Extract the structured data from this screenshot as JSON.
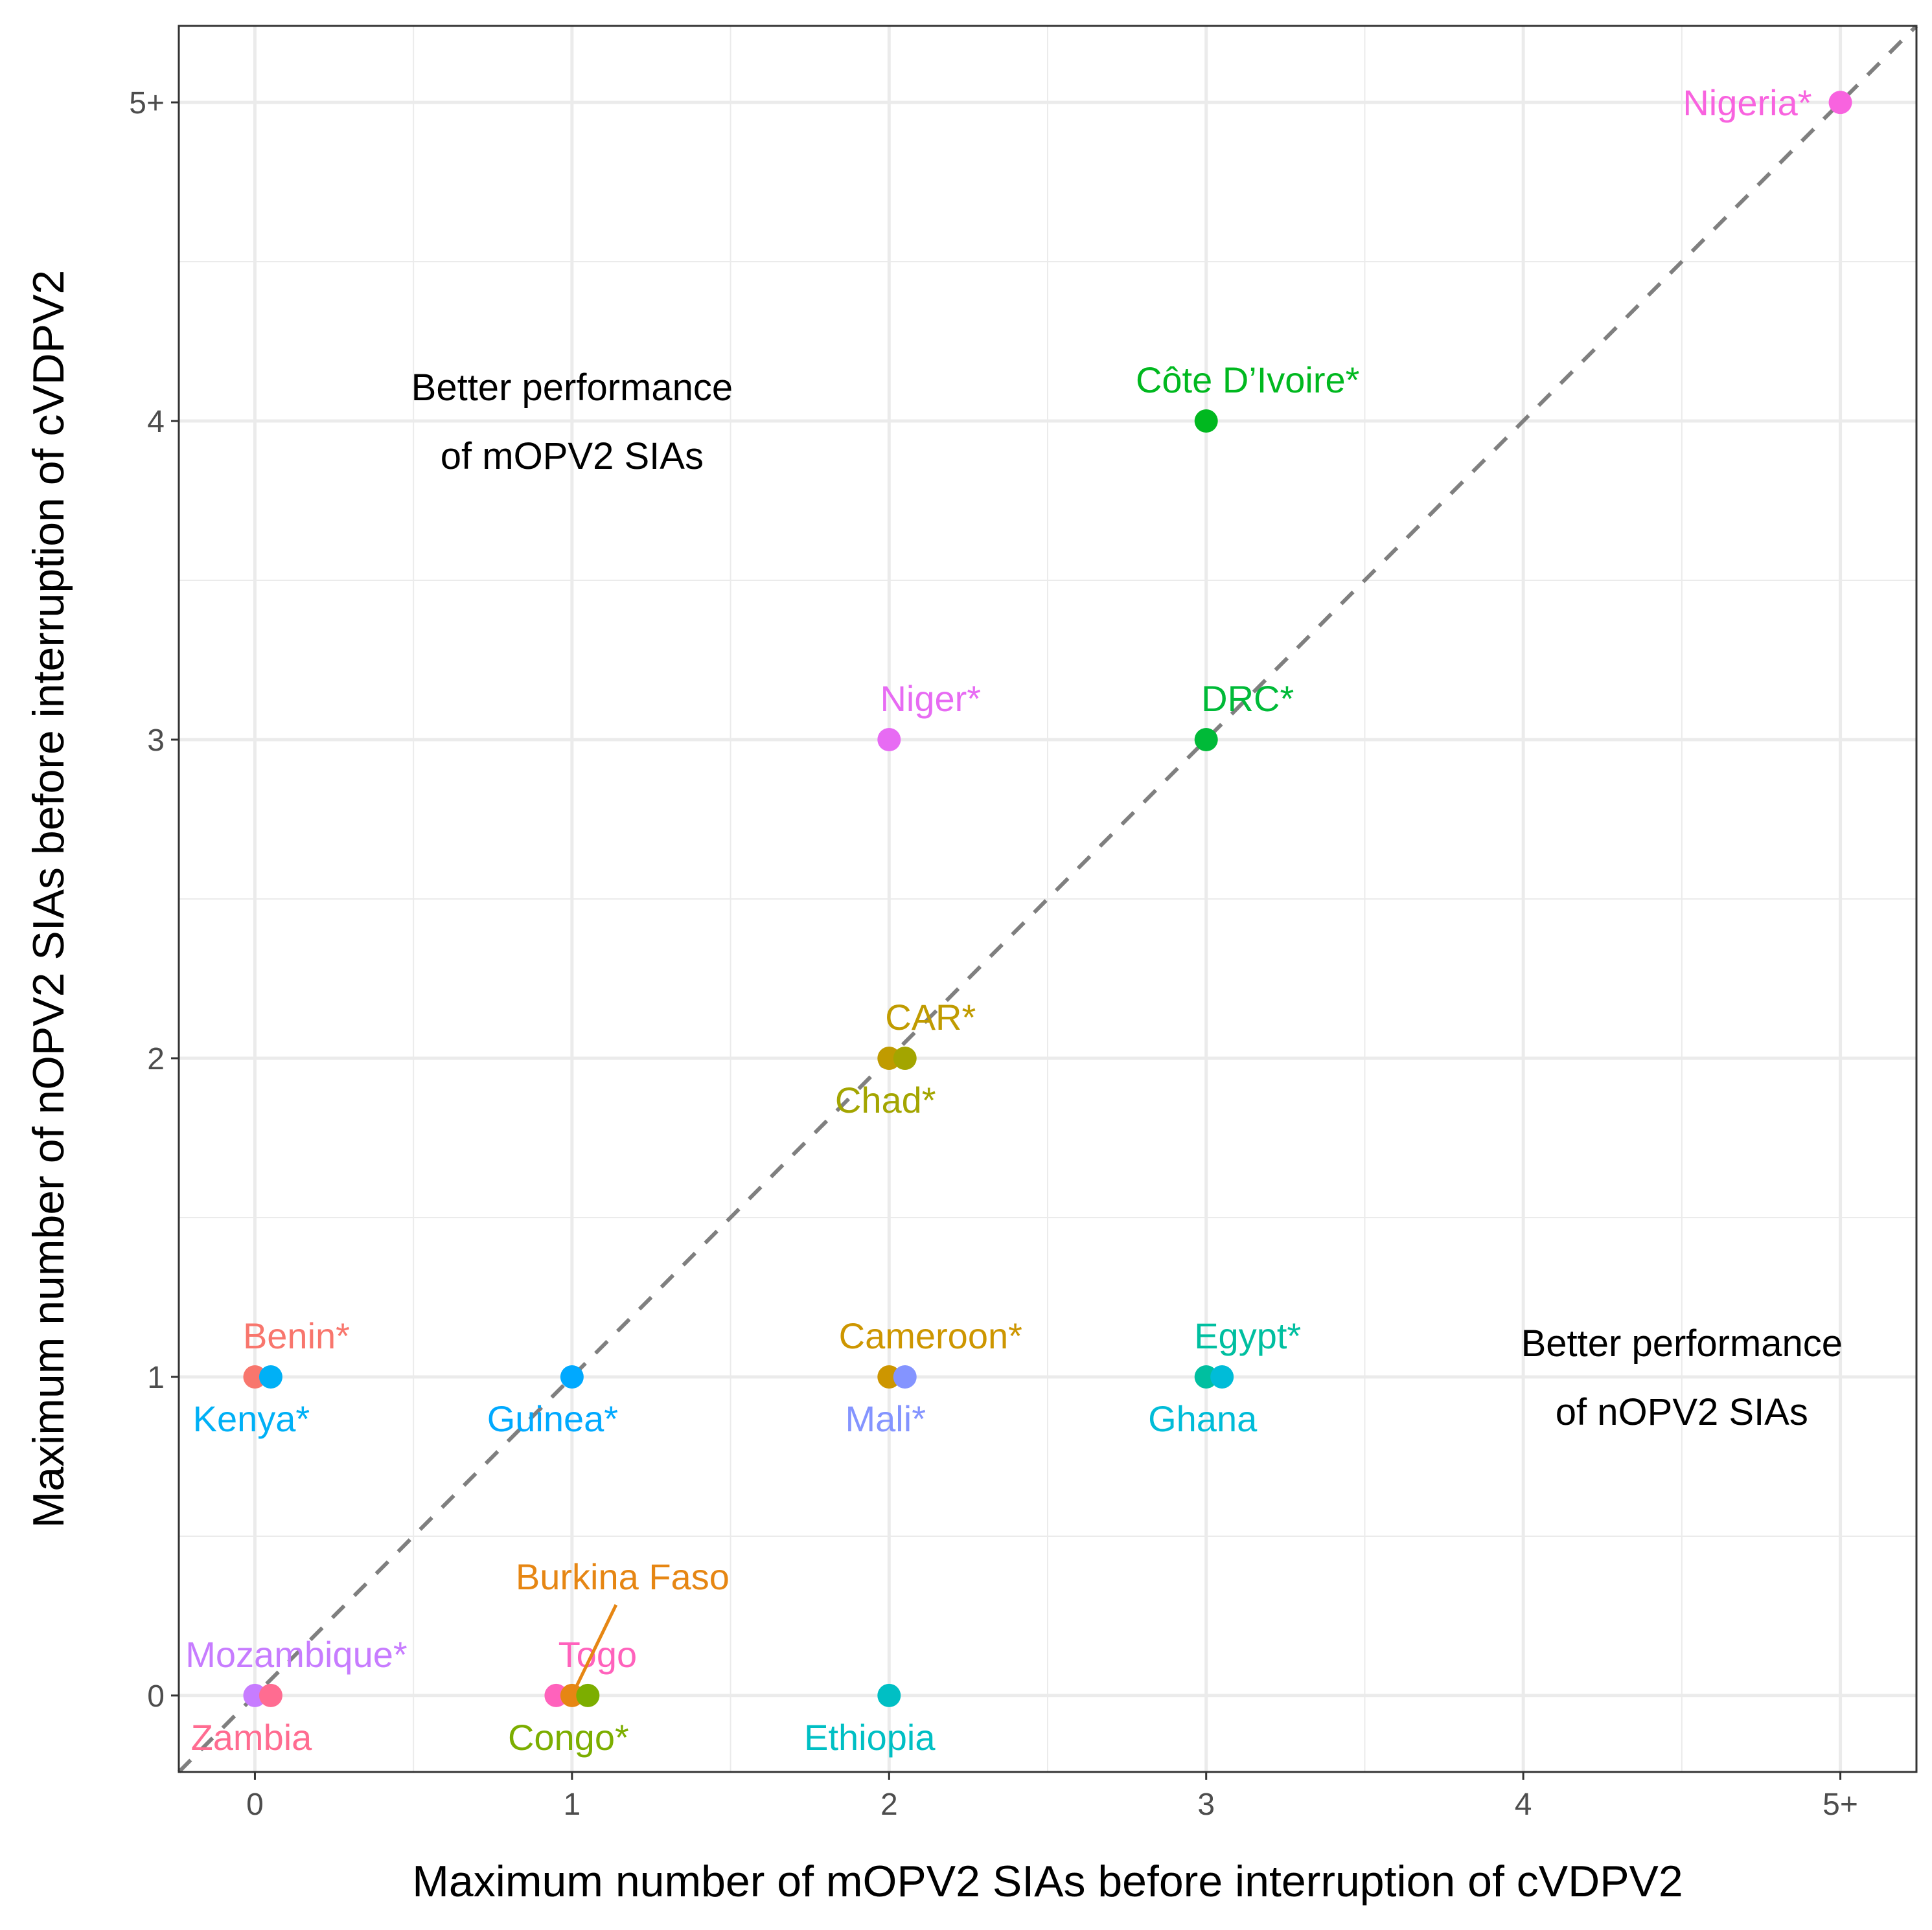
{
  "chart_data": {
    "type": "scatter",
    "title": "",
    "xlabel": "Maximum number of mOPV2 SIAs before interruption of cVDPV2",
    "ylabel": "Maximum number of nOPV2 SIAs before interruption of cVDPV2",
    "xlim": [
      -0.24,
      5.24
    ],
    "ylim": [
      -0.24,
      5.24
    ],
    "x_ticks": [
      0,
      1,
      2,
      3,
      4,
      5
    ],
    "x_tick_labels": [
      "0",
      "1",
      "2",
      "3",
      "4",
      "5+"
    ],
    "y_ticks": [
      0,
      1,
      2,
      3,
      4,
      5
    ],
    "y_tick_labels": [
      "0",
      "1",
      "2",
      "3",
      "4",
      "5+"
    ],
    "grid": true,
    "reference_line": {
      "style": "dashed",
      "slope": 1,
      "intercept": 0,
      "color": "#7f7f7f"
    },
    "points": [
      {
        "label": "Benin*",
        "x": 0,
        "y": 1,
        "color": "#F8766D",
        "label_pos": "above"
      },
      {
        "label": "Kenya*",
        "x": 0.05,
        "y": 1,
        "color": "#00B0F6",
        "label_pos": "below"
      },
      {
        "label": "Guinea*",
        "x": 1,
        "y": 1,
        "color": "#00A9FF",
        "label_pos": "below"
      },
      {
        "label": "Cameroon*",
        "x": 2,
        "y": 1,
        "color": "#CD9600",
        "label_pos": "above"
      },
      {
        "label": "Mali*",
        "x": 2.05,
        "y": 1,
        "color": "#8494FF",
        "label_pos": "below"
      },
      {
        "label": "Egypt*",
        "x": 3,
        "y": 1,
        "color": "#00BFA0",
        "label_pos": "above"
      },
      {
        "label": "Ghana",
        "x": 3.05,
        "y": 1,
        "color": "#00BCD8",
        "label_pos": "below"
      },
      {
        "label": "CAR*",
        "x": 2,
        "y": 2,
        "color": "#C09B00",
        "label_pos": "above"
      },
      {
        "label": "Chad*",
        "x": 2.05,
        "y": 2,
        "color": "#A3A500",
        "label_pos": "below"
      },
      {
        "label": "Niger*",
        "x": 2,
        "y": 3,
        "color": "#E76BF3",
        "label_pos": "above"
      },
      {
        "label": "DRC*",
        "x": 3,
        "y": 3,
        "color": "#00BA38",
        "label_pos": "above"
      },
      {
        "label": "Côte D’Ivoire*",
        "x": 3,
        "y": 4,
        "color": "#00B81F",
        "label_pos": "above"
      },
      {
        "label": "Nigeria*",
        "x": 5,
        "y": 5,
        "color": "#F863DF",
        "label_pos": "left"
      },
      {
        "label": "Mozambique*",
        "x": 0,
        "y": 0,
        "color": "#C77CFF",
        "label_pos": "above"
      },
      {
        "label": "Zambia",
        "x": 0.05,
        "y": 0,
        "color": "#FF6C91",
        "label_pos": "below"
      },
      {
        "label": "Togo",
        "x": 0.95,
        "y": 0,
        "color": "#FF62BC",
        "label_pos": "above"
      },
      {
        "label": "Burkina Faso",
        "x": 1,
        "y": 0,
        "color": "#E68613",
        "label_pos": "leader"
      },
      {
        "label": "Congo*",
        "x": 1.05,
        "y": 0,
        "color": "#7CAE00",
        "label_pos": "below"
      },
      {
        "label": "Ethiopia",
        "x": 2,
        "y": 0,
        "color": "#00BFC4",
        "label_pos": "below"
      }
    ],
    "annotations": [
      {
        "lines": [
          "Better performance",
          "of mOPV2 SIAs"
        ],
        "x": 1.0,
        "y": 4.0
      },
      {
        "lines": [
          "Better performance",
          "of nOPV2 SIAs"
        ],
        "x": 4.5,
        "y": 1.0
      }
    ]
  }
}
